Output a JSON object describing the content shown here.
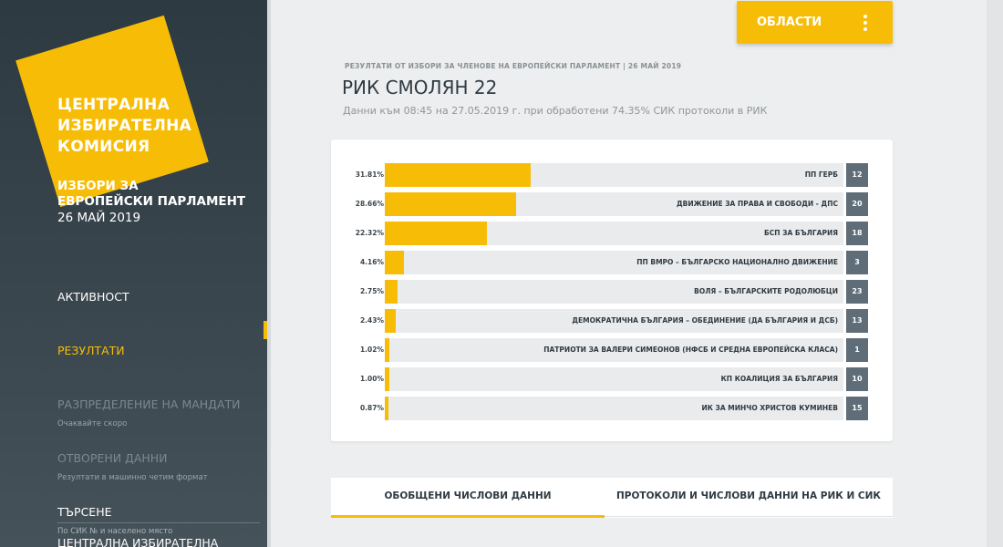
{
  "sidebar": {
    "logo_lines": [
      "ЦЕНТРАЛНА",
      "ИЗБИРАТЕЛНА",
      "КОМИСИЯ"
    ],
    "election_line1": "ИЗБОРИ ЗА",
    "election_line2": "ЕВРОПЕЙСКИ ПАРЛАМЕНТ",
    "election_date": "26 МАЙ 2019",
    "nav": [
      {
        "label": "АКТИВНОСТ",
        "sub": ""
      },
      {
        "label": "РЕЗУЛТАТИ",
        "sub": ""
      },
      {
        "label": "РАЗПРЕДЕЛЕНИЕ НА МАНДАТИ",
        "sub": "Очаквайте скоро"
      },
      {
        "label": "ОТВОРЕНИ ДАННИ",
        "sub": "Резултати в машинно четим формат"
      },
      {
        "label": "ТЪРСЕНЕ",
        "sub": "По СИК № и населено място"
      }
    ],
    "footer": "ЦЕНТРАЛНА ИЗБИРАТЕЛНА"
  },
  "header": {
    "areas_button": "ОБЛАСТИ",
    "pre_title": "РЕЗУЛТАТИ ОТ ИЗБОРИ ЗА ЧЛЕНОВЕ НА ЕВРОПЕЙСКИ ПАРЛАМЕНТ | 26 МАЙ 2019",
    "title": "РИК СМОЛЯН 22",
    "subtitle": "Данни към 08:45 на 27.05.2019 г. при обработени 74.35% СИК протоколи в РИК"
  },
  "results": [
    {
      "pct_label": "31.81%",
      "pct": 31.81,
      "party": "ПП ГЕРБ",
      "number": "12"
    },
    {
      "pct_label": "28.66%",
      "pct": 28.66,
      "party": "ДВИЖЕНИЕ ЗА ПРАВА И СВОБОДИ - ДПС",
      "number": "20"
    },
    {
      "pct_label": "22.32%",
      "pct": 22.32,
      "party": "БСП ЗА БЪЛГАРИЯ",
      "number": "18"
    },
    {
      "pct_label": "4.16%",
      "pct": 4.16,
      "party": "ПП ВМРО – БЪЛГАРСКО НАЦИОНАЛНО ДВИЖЕНИЕ",
      "number": "3"
    },
    {
      "pct_label": "2.75%",
      "pct": 2.75,
      "party": "ВОЛЯ – БЪЛГАРСКИТЕ РОДОЛЮБЦИ",
      "number": "23"
    },
    {
      "pct_label": "2.43%",
      "pct": 2.43,
      "party": "ДЕМОКРАТИЧНА БЪЛГАРИЯ – ОБЕДИНЕНИЕ (ДА БЪЛГАРИЯ И ДСБ)",
      "number": "13"
    },
    {
      "pct_label": "1.02%",
      "pct": 1.02,
      "party": "ПАТРИОТИ ЗА ВАЛЕРИ СИМЕОНОВ (НФСБ И СРЕДНА ЕВРОПЕЙСКА КЛАСА)",
      "number": "1"
    },
    {
      "pct_label": "1.00%",
      "pct": 1.0,
      "party": "КП КОАЛИЦИЯ ЗА БЪЛГАРИЯ",
      "number": "10"
    },
    {
      "pct_label": "0.87%",
      "pct": 0.87,
      "party": "ИК ЗА МИНЧО ХРИСТОВ КУМИНЕВ",
      "number": "15"
    }
  ],
  "tabs": [
    {
      "label": "ОБОБЩЕНИ ЧИСЛОВИ ДАННИ",
      "active": true
    },
    {
      "label": "ПРОТОКОЛИ И ЧИСЛОВИ ДАННИ НА РИК И СИК",
      "active": false
    }
  ],
  "colors": {
    "accent": "#f7bd06",
    "sidebar": "#34414a",
    "badge": "#5e6d78"
  }
}
